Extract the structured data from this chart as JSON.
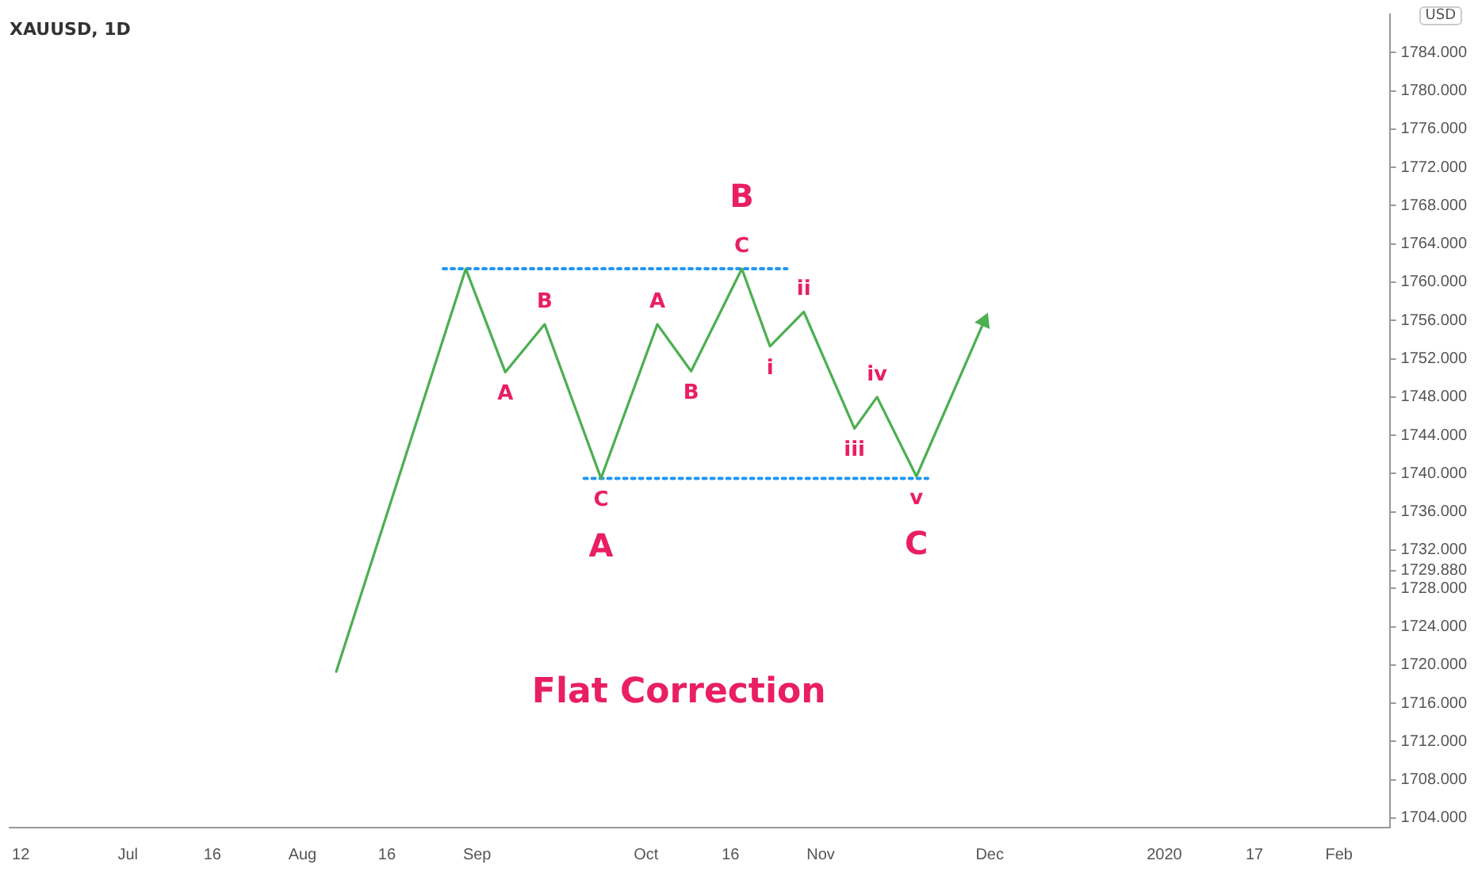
{
  "chart_data": {
    "type": "line",
    "title": "XAUUSD, 1D",
    "ylabel": "USD",
    "xlim": [
      "2019-06-10",
      "2020-02-10"
    ],
    "xticks": [
      {
        "value": "2019-06-12",
        "label": "12"
      },
      {
        "value": "2019-07-01",
        "label": "Jul"
      },
      {
        "value": "2019-07-16",
        "label": "16"
      },
      {
        "value": "2019-08-01",
        "label": "Aug"
      },
      {
        "value": "2019-08-16",
        "label": "16"
      },
      {
        "value": "2019-09-01",
        "label": "Sep"
      },
      {
        "value": "2019-10-01",
        "label": "Oct"
      },
      {
        "value": "2019-10-16",
        "label": "16"
      },
      {
        "value": "2019-11-01",
        "label": "Nov"
      },
      {
        "value": "2019-12-01",
        "label": "Dec"
      },
      {
        "value": "2020-01-01",
        "label": "2020"
      },
      {
        "value": "2020-01-17",
        "label": "17"
      },
      {
        "value": "2020-02-01",
        "label": "Feb"
      }
    ],
    "ylim": [
      1703,
      1788
    ],
    "yticks": [
      {
        "value": 1704,
        "label": "1704.000"
      },
      {
        "value": 1708,
        "label": "1708.000"
      },
      {
        "value": 1712,
        "label": "1712.000"
      },
      {
        "value": 1716,
        "label": "1716.000"
      },
      {
        "value": 1720,
        "label": "1720.000"
      },
      {
        "value": 1724,
        "label": "1724.000"
      },
      {
        "value": 1728,
        "label": "1728.000"
      },
      {
        "value": 1729.88,
        "label": "1729.880"
      },
      {
        "value": 1732,
        "label": "1732.000"
      },
      {
        "value": 1736,
        "label": "1736.000"
      },
      {
        "value": 1740,
        "label": "1740.000"
      },
      {
        "value": 1744,
        "label": "1744.000"
      },
      {
        "value": 1748,
        "label": "1748.000"
      },
      {
        "value": 1752,
        "label": "1752.000"
      },
      {
        "value": 1756,
        "label": "1756.000"
      },
      {
        "value": 1760,
        "label": "1760.000"
      },
      {
        "value": 1764,
        "label": "1764.000"
      },
      {
        "value": 1768,
        "label": "1768.000"
      },
      {
        "value": 1772,
        "label": "1772.000"
      },
      {
        "value": 1776,
        "label": "1776.000"
      },
      {
        "value": 1780,
        "label": "1780.000"
      },
      {
        "value": 1784,
        "label": "1784.000"
      }
    ],
    "grid": false,
    "legend": false,
    "marker": "none",
    "series": [
      {
        "color": "#4caf50",
        "line_style": "solid",
        "x": [
          "2019-08-07",
          "2019-08-30",
          "2019-09-06",
          "2019-09-13",
          "2019-09-23",
          "2019-10-03",
          "2019-10-09",
          "2019-10-18",
          "2019-10-23",
          "2019-10-29",
          "2019-11-07",
          "2019-11-11",
          "2019-11-18",
          "2019-11-30"
        ],
        "values": [
          1719.3,
          1761.4,
          1750.6,
          1755.6,
          1739.5,
          1755.6,
          1750.7,
          1761.4,
          1753.3,
          1756.9,
          1744.7,
          1748.0,
          1739.7,
          1755.9
        ]
      },
      {
        "color": "#2196f3",
        "line_style": "dotted",
        "x": [
          "2019-08-26",
          "2019-10-26"
        ],
        "values": [
          1761.4,
          1761.4
        ]
      },
      {
        "color": "#2196f3",
        "line_style": "dotted",
        "x": [
          "2019-09-20",
          "2019-11-20"
        ],
        "values": [
          1739.5,
          1739.5
        ]
      }
    ],
    "annotations": [
      {
        "text": "A",
        "x": "2019-09-06",
        "y": 1750.6
      },
      {
        "text": "B",
        "x": "2019-09-13",
        "y": 1755.6
      },
      {
        "text": "C",
        "x": "2019-09-23",
        "y": 1739.5
      },
      {
        "text": "A",
        "x": "2019-09-23",
        "y": 1739.5
      },
      {
        "text": "A",
        "x": "2019-10-03",
        "y": 1755.6
      },
      {
        "text": "B",
        "x": "2019-10-09",
        "y": 1750.7
      },
      {
        "text": "C",
        "x": "2019-10-18",
        "y": 1761.4
      },
      {
        "text": "B",
        "x": "2019-10-18",
        "y": 1761.4
      },
      {
        "text": "i",
        "x": "2019-10-23",
        "y": 1753.3
      },
      {
        "text": "ii",
        "x": "2019-10-29",
        "y": 1756.9
      },
      {
        "text": "iii",
        "x": "2019-11-07",
        "y": 1744.7
      },
      {
        "text": "iv",
        "x": "2019-11-11",
        "y": 1748.0
      },
      {
        "text": "v",
        "x": "2019-11-18",
        "y": 1739.7
      },
      {
        "text": "C",
        "x": "2019-11-18",
        "y": 1739.7
      },
      "Flat Correction"
    ]
  }
}
